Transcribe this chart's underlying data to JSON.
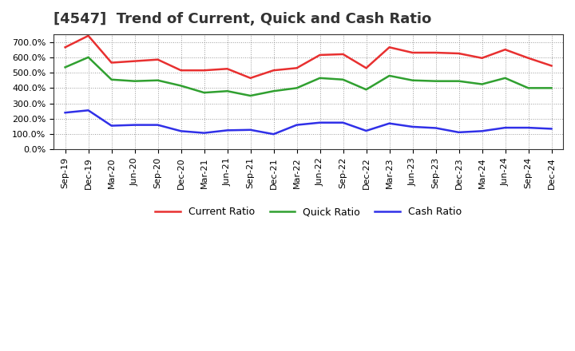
{
  "title": "[4547]  Trend of Current, Quick and Cash Ratio",
  "x_labels": [
    "Sep-19",
    "Dec-19",
    "Mar-20",
    "Jun-20",
    "Sep-20",
    "Dec-20",
    "Mar-21",
    "Jun-21",
    "Sep-21",
    "Dec-21",
    "Mar-22",
    "Jun-22",
    "Sep-22",
    "Dec-22",
    "Mar-23",
    "Jun-23",
    "Sep-23",
    "Dec-23",
    "Mar-24",
    "Jun-24",
    "Sep-24",
    "Dec-24"
  ],
  "current_ratio": [
    665,
    740,
    565,
    575,
    585,
    515,
    515,
    525,
    465,
    515,
    530,
    615,
    620,
    530,
    665,
    630,
    630,
    625,
    595,
    650,
    595,
    545
  ],
  "quick_ratio": [
    535,
    600,
    455,
    445,
    450,
    415,
    370,
    380,
    350,
    380,
    400,
    465,
    455,
    390,
    480,
    450,
    445,
    445,
    425,
    465,
    400,
    400
  ],
  "cash_ratio": [
    240,
    255,
    155,
    160,
    160,
    120,
    108,
    125,
    128,
    100,
    160,
    175,
    175,
    122,
    170,
    148,
    140,
    112,
    120,
    142,
    142,
    135
  ],
  "current_color": "#e83030",
  "quick_color": "#30a030",
  "cash_color": "#3030e8",
  "ylim": [
    0,
    750
  ],
  "yticks": [
    0,
    100,
    200,
    300,
    400,
    500,
    600,
    700
  ],
  "grid_color": "#999999",
  "bg_color": "#ffffff",
  "plot_bg_color": "#ffffff",
  "legend_labels": [
    "Current Ratio",
    "Quick Ratio",
    "Cash Ratio"
  ],
  "title_fontsize": 13,
  "tick_fontsize": 8,
  "legend_fontsize": 9,
  "linewidth": 1.8
}
